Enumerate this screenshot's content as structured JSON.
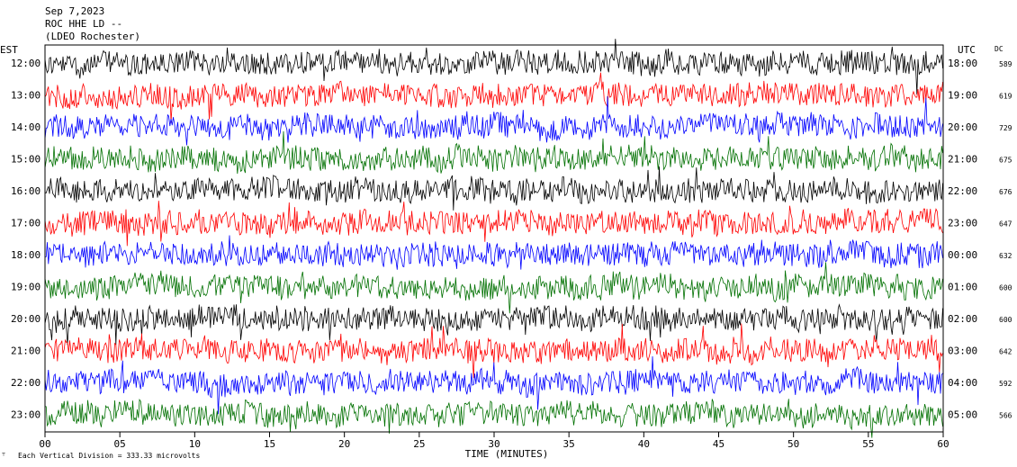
{
  "chart_data": {
    "type": "line",
    "title_lines": [
      "Sep 7,2023",
      "ROC HHE LD --",
      "(LDEO Rochester)"
    ],
    "left_axis_label": "EST",
    "right_axis_label": "UTC",
    "dc_label": "DC",
    "xlabel": "TIME (MINUTES)",
    "xlim": [
      0,
      60
    ],
    "x_ticks": [
      "00",
      "05",
      "10",
      "15",
      "20",
      "25",
      "30",
      "35",
      "40",
      "45",
      "50",
      "55",
      "60"
    ],
    "footer": "Each Vertical Division =  333.33 microvolts",
    "colors": [
      "#000000",
      "#ff0000",
      "#0000ff",
      "#007000"
    ],
    "rows": [
      {
        "est": "12:00",
        "utc": "18:00",
        "dc": "589"
      },
      {
        "est": "13:00",
        "utc": "19:00",
        "dc": "619"
      },
      {
        "est": "14:00",
        "utc": "20:00",
        "dc": "729"
      },
      {
        "est": "15:00",
        "utc": "21:00",
        "dc": "675"
      },
      {
        "est": "16:00",
        "utc": "22:00",
        "dc": "676"
      },
      {
        "est": "17:00",
        "utc": "23:00",
        "dc": "647"
      },
      {
        "est": "18:00",
        "utc": "00:00",
        "dc": "632"
      },
      {
        "est": "19:00",
        "utc": "01:00",
        "dc": "600"
      },
      {
        "est": "20:00",
        "utc": "02:00",
        "dc": "600"
      },
      {
        "est": "21:00",
        "utc": "03:00",
        "dc": "642"
      },
      {
        "est": "22:00",
        "utc": "04:00",
        "dc": "592"
      },
      {
        "est": "23:00",
        "utc": "05:00",
        "dc": "566"
      }
    ]
  }
}
